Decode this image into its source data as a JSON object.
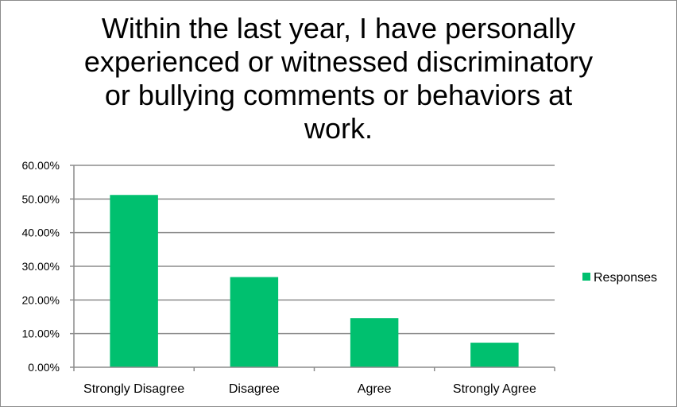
{
  "chart_data": {
    "type": "bar",
    "title": "Within the last year, I have personally experienced or witnessed discriminatory or bullying comments or behaviors at work.",
    "categories": [
      "Strongly Disagree",
      "Disagree",
      "Agree",
      "Strongly Agree"
    ],
    "series": [
      {
        "name": "Responses",
        "values": [
          51.2,
          26.8,
          14.6,
          7.3
        ],
        "color": "#00c06f"
      }
    ],
    "ylim": [
      0,
      60
    ],
    "yticks": [
      0,
      10,
      20,
      30,
      40,
      50,
      60
    ],
    "ytick_labels": [
      "0.00%",
      "10.00%",
      "20.00%",
      "30.00%",
      "40.00%",
      "50.00%",
      "60.00%"
    ],
    "y_unit": "percent",
    "grid": true,
    "gridline_color": "#8c8c8c",
    "legend": {
      "position": "right",
      "entries": [
        "Responses"
      ]
    }
  }
}
